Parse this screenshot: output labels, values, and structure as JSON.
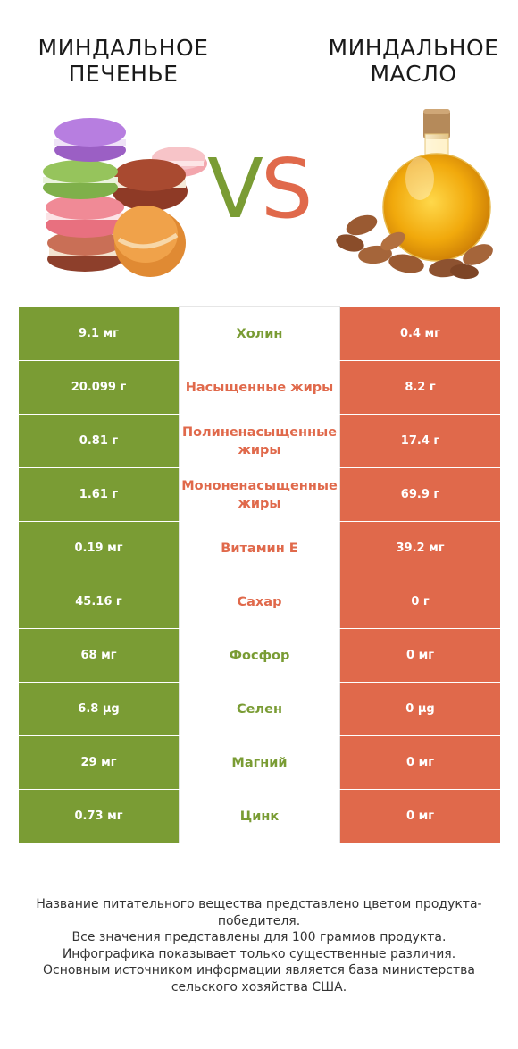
{
  "left_product": {
    "title": "МИНДАЛЬНОЕ ПЕЧЕНЬЕ",
    "color": "#7a9c34",
    "image_icon": "macarons-icon"
  },
  "right_product": {
    "title": "МИНДАЛЬНОЕ МАСЛО",
    "color": "#e0694b",
    "image_icon": "oil-bottle-with-almonds-icon"
  },
  "vs": {
    "v": "V",
    "s": "S"
  },
  "rows": [
    {
      "name": "Холин",
      "left": "9.1 мг",
      "right": "0.4 мг",
      "winner": "left"
    },
    {
      "name": "Насыщенные жиры",
      "left": "20.099 г",
      "right": "8.2 г",
      "winner": "right"
    },
    {
      "name": "Полиненасыщенные жиры",
      "left": "0.81 г",
      "right": "17.4 г",
      "winner": "right"
    },
    {
      "name": "Мононенасыщенные жиры",
      "left": "1.61 г",
      "right": "69.9 г",
      "winner": "right"
    },
    {
      "name": "Витамин E",
      "left": "0.19 мг",
      "right": "39.2 мг",
      "winner": "right"
    },
    {
      "name": "Сахар",
      "left": "45.16 г",
      "right": "0 г",
      "winner": "right"
    },
    {
      "name": "Фосфор",
      "left": "68 мг",
      "right": "0 мг",
      "winner": "left"
    },
    {
      "name": "Селен",
      "left": "6.8 µg",
      "right": "0 µg",
      "winner": "left"
    },
    {
      "name": "Магний",
      "left": "29 мг",
      "right": "0 мг",
      "winner": "left"
    },
    {
      "name": "Цинк",
      "left": "0.73 мг",
      "right": "0 мг",
      "winner": "left"
    }
  ],
  "footer": [
    "Название питательного вещества представлено цветом продукта-победителя.",
    "Все значения представлены для 100 граммов продукта.",
    "Инфографика показывает только существенные различия.",
    "Основным источником информации является база министерства сельского хозяйства США."
  ]
}
